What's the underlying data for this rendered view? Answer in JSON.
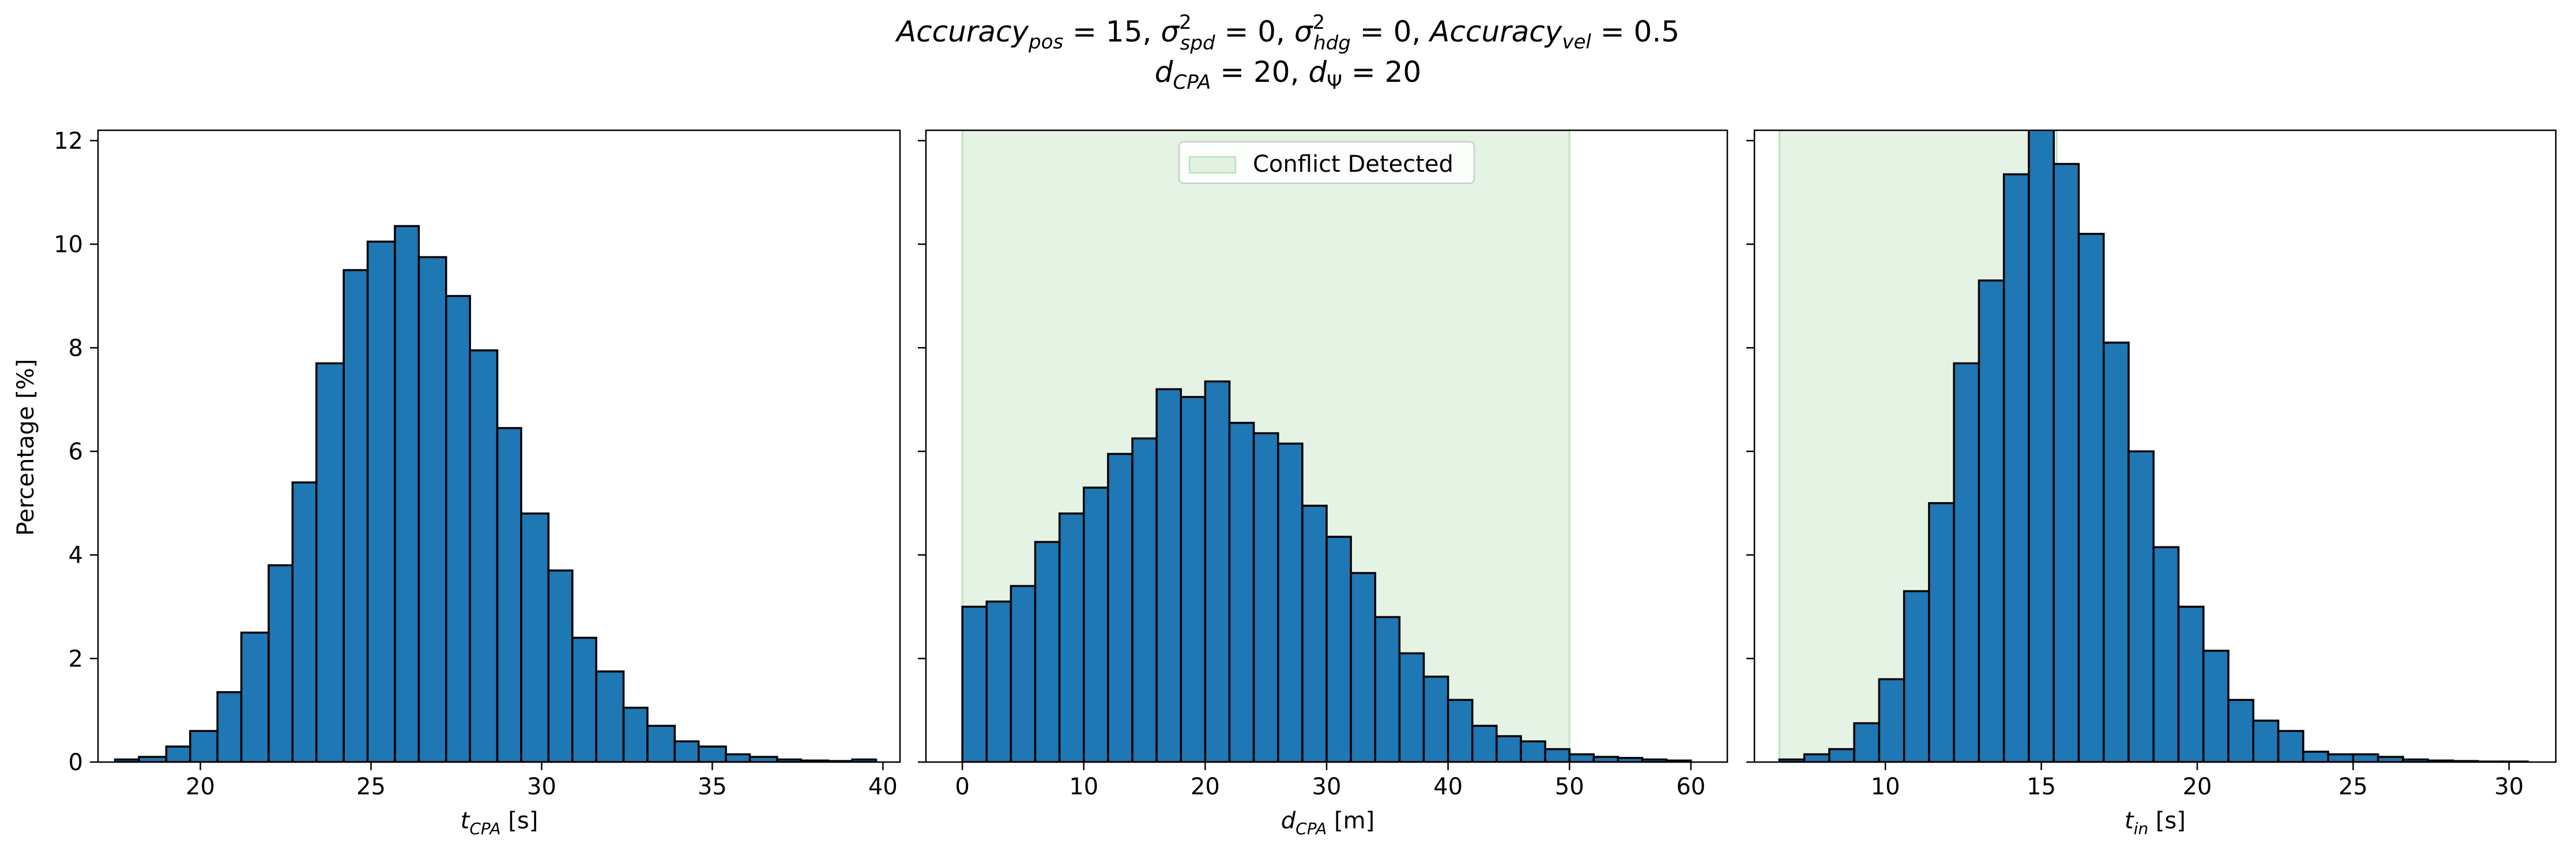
{
  "figure": {
    "title_line1": "Accuracy_pos = 15, σ²_spd = 0, σ²_hdg = 0, Accuracy_vel = 0.5",
    "title_line2": "d_CPA = 20, d_Ψ = 20",
    "shared_ylabel": "Percentage [%]",
    "bar_color": "#1f77b4",
    "edge_color": "#000000",
    "shade_color": "#2ca02c"
  },
  "chart_data": [
    {
      "type": "bar",
      "title": "",
      "xlabel": "t_CPA [s]",
      "ylabel": "Percentage [%]",
      "xlim": [
        17.0,
        40.5
      ],
      "ylim": [
        0,
        12.2
      ],
      "xticks": [
        20,
        25,
        30,
        35,
        40
      ],
      "yticks": [
        0,
        2,
        4,
        6,
        8,
        10,
        12
      ],
      "grid": false,
      "bin_edges": [
        17.5,
        18.2,
        19.0,
        19.7,
        20.5,
        21.2,
        22.0,
        22.7,
        23.4,
        24.2,
        24.9,
        25.7,
        26.4,
        27.2,
        27.9,
        28.7,
        29.4,
        30.2,
        30.9,
        31.6,
        32.4,
        33.1,
        33.9,
        34.6,
        35.4,
        36.1,
        36.9,
        37.6,
        38.4,
        39.1,
        39.8
      ],
      "values": [
        0.05,
        0.1,
        0.3,
        0.6,
        1.35,
        2.5,
        3.8,
        5.4,
        7.7,
        9.5,
        10.05,
        10.35,
        9.75,
        9.0,
        7.95,
        6.45,
        4.8,
        3.7,
        2.4,
        1.75,
        1.05,
        0.7,
        0.4,
        0.3,
        0.15,
        0.1,
        0.05,
        0.03,
        0.02,
        0.05
      ]
    },
    {
      "type": "bar",
      "title": "",
      "xlabel": "d_CPA [m]",
      "ylabel": "",
      "xlim": [
        -3.0,
        63.0
      ],
      "ylim": [
        0,
        12.2
      ],
      "xticks": [
        0,
        10,
        20,
        30,
        40,
        50,
        60
      ],
      "yticks": [
        0,
        2,
        4,
        6,
        8,
        10,
        12
      ],
      "grid": false,
      "shaded_region": {
        "x_from": 0,
        "x_to": 50,
        "label": "Conflict Detected"
      },
      "legend": {
        "entries": [
          "Conflict Detected"
        ],
        "placement": "upper center"
      },
      "bin_edges": [
        0,
        2,
        4,
        6,
        8,
        10,
        12,
        14,
        16,
        18,
        20,
        22,
        24,
        26,
        28,
        30,
        32,
        34,
        36,
        38,
        40,
        42,
        44,
        46,
        48,
        50,
        52,
        54,
        56,
        58,
        60
      ],
      "values": [
        3.0,
        3.1,
        3.4,
        4.25,
        4.8,
        5.3,
        5.95,
        6.25,
        7.2,
        7.05,
        7.35,
        6.55,
        6.35,
        6.15,
        4.95,
        4.35,
        3.65,
        2.8,
        2.1,
        1.65,
        1.2,
        0.7,
        0.5,
        0.4,
        0.25,
        0.15,
        0.1,
        0.08,
        0.05,
        0.03
      ]
    },
    {
      "type": "bar",
      "title": "",
      "xlabel": "t_in [s]",
      "ylabel": "",
      "xlim": [
        5.8,
        31.5
      ],
      "ylim": [
        0,
        12.2
      ],
      "xticks": [
        10,
        15,
        20,
        25,
        30
      ],
      "yticks": [
        0,
        2,
        4,
        6,
        8,
        10,
        12
      ],
      "grid": false,
      "shaded_region": {
        "x_from": 6.6,
        "x_to": 15.5,
        "label": "Conflict Detected"
      },
      "bin_edges": [
        6.6,
        7.4,
        8.2,
        9.0,
        9.8,
        10.6,
        11.4,
        12.2,
        13.0,
        13.8,
        14.6,
        15.4,
        16.2,
        17.0,
        17.8,
        18.6,
        19.4,
        20.2,
        21.0,
        21.8,
        22.6,
        23.4,
        24.2,
        25.0,
        25.8,
        26.6,
        27.4,
        28.2,
        29.0,
        29.8,
        30.6
      ],
      "values": [
        0.05,
        0.15,
        0.25,
        0.75,
        1.6,
        3.3,
        5.0,
        7.7,
        9.3,
        11.35,
        12.5,
        11.55,
        10.2,
        8.1,
        6.0,
        4.15,
        3.0,
        2.15,
        1.2,
        0.8,
        0.6,
        0.2,
        0.15,
        0.15,
        0.1,
        0.05,
        0.03,
        0.02,
        0.01,
        0.01
      ]
    }
  ]
}
